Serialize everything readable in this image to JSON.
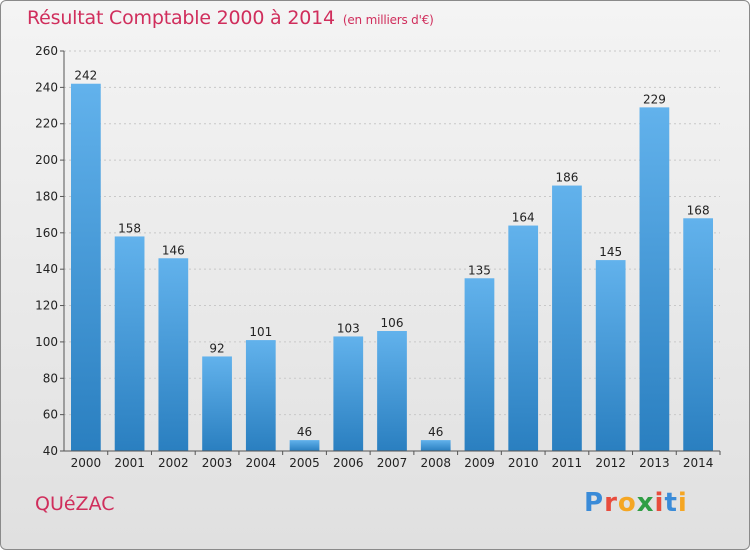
{
  "title": "Résultat Comptable 2000 à 2014",
  "subtitle": "(en milliers d'€)",
  "commune": "QUéZAC",
  "logo": {
    "text": "Proxiti",
    "letters": [
      {
        "ch": "P",
        "color": "#3a8bd8"
      },
      {
        "ch": "r",
        "color": "#e84c3d"
      },
      {
        "ch": "o",
        "color": "#f5a623"
      },
      {
        "ch": "x",
        "color": "#2f9e44"
      },
      {
        "ch": "i",
        "color": "#e84c3d"
      },
      {
        "ch": "t",
        "color": "#3a8bd8"
      },
      {
        "ch": "i",
        "color": "#f5a623"
      }
    ]
  },
  "colors": {
    "bar_light": "#62b2ec",
    "bar_dark": "#2a7fc0",
    "title": "#d02e5c"
  },
  "chart_data": {
    "type": "bar",
    "categories": [
      "2000",
      "2001",
      "2002",
      "2003",
      "2004",
      "2005",
      "2006",
      "2007",
      "2008",
      "2009",
      "2010",
      "2011",
      "2012",
      "2013",
      "2014"
    ],
    "values": [
      242,
      158,
      146,
      92,
      101,
      46,
      103,
      106,
      46,
      135,
      164,
      186,
      145,
      229,
      168
    ],
    "ylim": [
      40,
      260
    ],
    "yticks": [
      40,
      60,
      80,
      100,
      120,
      140,
      160,
      180,
      200,
      220,
      240,
      260
    ],
    "grid": true,
    "xlabel": "",
    "ylabel": ""
  }
}
